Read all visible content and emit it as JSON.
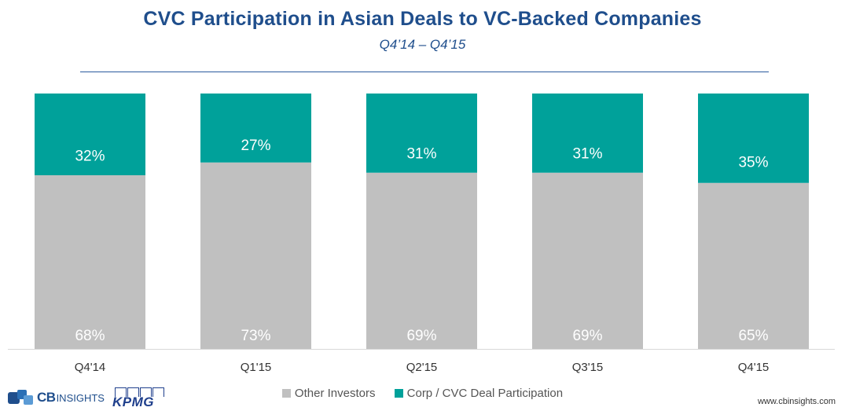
{
  "title": "CVC Participation in Asian Deals to VC-Backed Companies",
  "subtitle": "Q4’14 – Q4’15",
  "colors": {
    "title": "#1f4e8c",
    "corp": "#00a19a",
    "other": "#c0c0c0",
    "label": "#ffffff"
  },
  "legend": {
    "other": "Other Investors",
    "corp": "Corp / CVC Deal Participation"
  },
  "footer": {
    "site": "www.cbinsights.com",
    "cb_logo": "CB",
    "cb_logo_sub": "INSIGHTS",
    "kpmg_logo": "KPMG"
  },
  "chart_data": {
    "type": "bar",
    "stacked": true,
    "categories": [
      "Q4'14",
      "Q1'15",
      "Q2'15",
      "Q3'15",
      "Q4'15"
    ],
    "series": [
      {
        "name": "Other Investors",
        "values": [
          68,
          73,
          69,
          69,
          65
        ],
        "labels": [
          "68%",
          "73%",
          "69%",
          "69%",
          "65%"
        ]
      },
      {
        "name": "Corp / CVC Deal Participation",
        "values": [
          32,
          27,
          31,
          31,
          35
        ],
        "labels": [
          "32%",
          "27%",
          "31%",
          "31%",
          "35%"
        ]
      }
    ],
    "ylim": [
      0,
      100
    ],
    "grid": false,
    "legend_position": "bottom"
  }
}
